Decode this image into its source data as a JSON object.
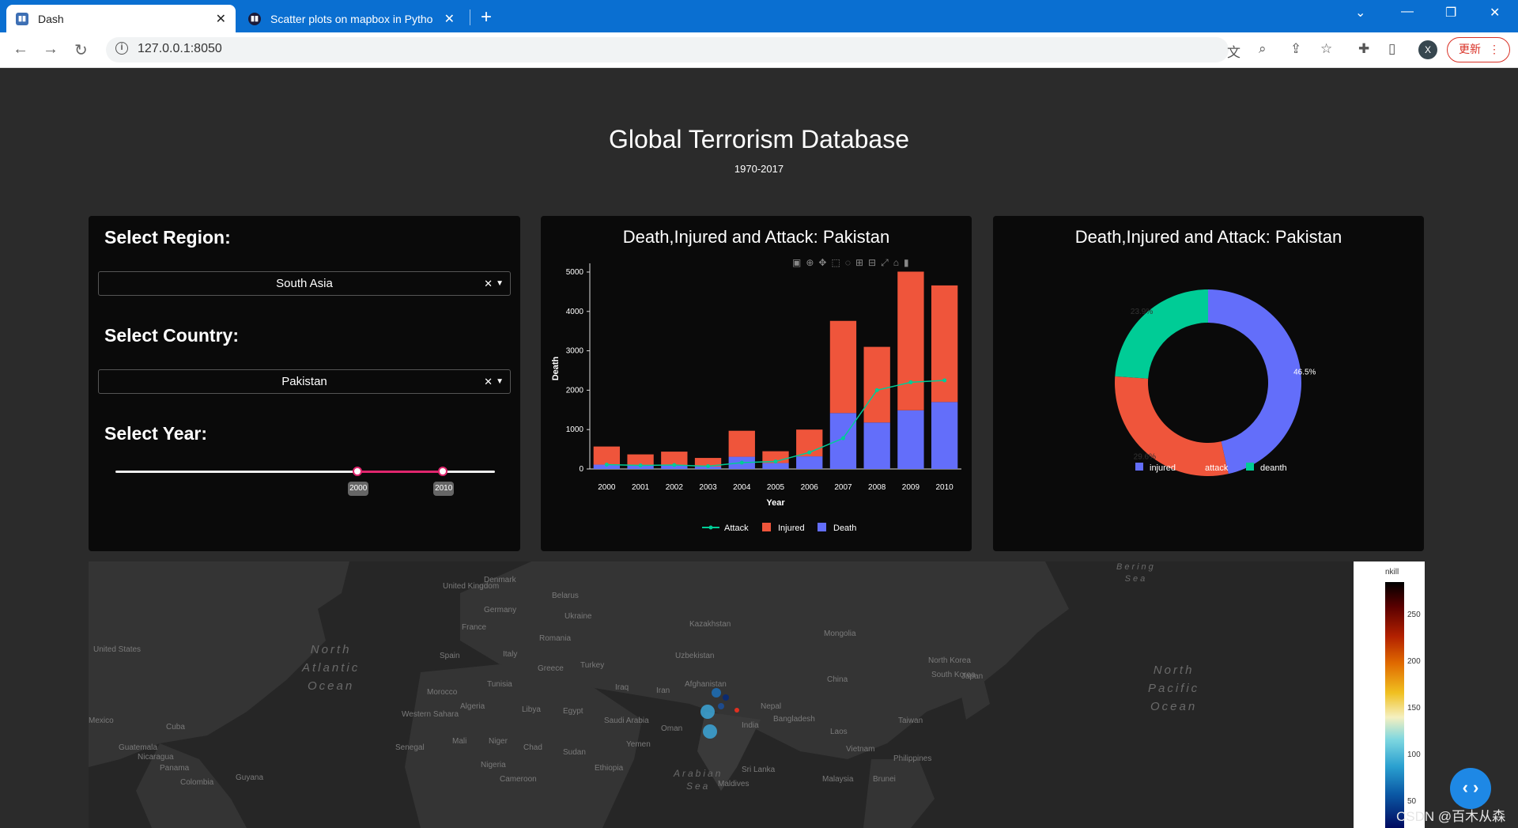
{
  "browser": {
    "tabs": [
      {
        "title": "Dash",
        "icon": "dash-icon"
      },
      {
        "title": "Scatter plots on mapbox in Pytho",
        "icon": "plotly-icon"
      }
    ],
    "url": "127.0.0.1:8050",
    "update_label": "更新",
    "profile_initial": "X"
  },
  "header": {
    "title": "Global Terrorism Database",
    "subtitle": "1970-2017"
  },
  "filters": {
    "region_label": "Select Region:",
    "region_value": "South Asia",
    "country_label": "Select Country:",
    "country_value": "Pakistan",
    "year_label": "Select Year:",
    "year_range": [
      "2000",
      "2010"
    ],
    "year_range_fraction": [
      0.64,
      0.865
    ]
  },
  "bar_chart": {
    "title": "Death,Injured and Attack: Pakistan",
    "chart_data": {
      "type": "bar",
      "stacked": true,
      "categories": [
        "2000",
        "2001",
        "2002",
        "2003",
        "2004",
        "2005",
        "2006",
        "2007",
        "2008",
        "2009",
        "2010"
      ],
      "series": [
        {
          "name": "Death",
          "type": "bar",
          "color": "#636efa",
          "values": [
            110,
            90,
            100,
            60,
            310,
            150,
            320,
            1420,
            1180,
            1490,
            1700
          ]
        },
        {
          "name": "Injured",
          "type": "bar",
          "color": "#ef553b",
          "values": [
            460,
            280,
            340,
            220,
            660,
            300,
            680,
            2340,
            1920,
            3520,
            2960
          ]
        },
        {
          "name": "Attack",
          "type": "line",
          "color": "#00cc96",
          "values": [
            110,
            90,
            100,
            70,
            160,
            190,
            420,
            780,
            2000,
            2200,
            2250
          ]
        }
      ],
      "xlabel": "Year",
      "ylabel": "Death",
      "yticks": [
        "0",
        "1000",
        "2000",
        "3000",
        "4000",
        "5000"
      ],
      "ylim": [
        0,
        5100
      ],
      "legend": "bottom-center",
      "legend_order": [
        "Attack",
        "Injured",
        "Death"
      ]
    }
  },
  "pie_chart": {
    "title": "Death,Injured and Attack: Pakistan",
    "chart_data": {
      "type": "pie",
      "hole": true,
      "labels": [
        "injured",
        "attack",
        "deanth"
      ],
      "values": [
        46.5,
        29.6,
        23.9
      ],
      "value_labels": [
        "46.5%",
        "29.6%",
        "23.9%"
      ],
      "colors": [
        "#636efa",
        "#ef553b",
        "#00cc96"
      ],
      "legend": "bottom-center"
    }
  },
  "map": {
    "ocean_labels": [
      "North\nAtlantic\nOcean",
      "North\nPacific\nOcean",
      "Arabian\nSea",
      "Bering\nSea"
    ],
    "country_labels": [
      "United Kingdom",
      "Denmark",
      "Belarus",
      "Germany",
      "Ukraine",
      "France",
      "Romania",
      "Kazakhstan",
      "Mongolia",
      "Spain",
      "Italy",
      "Uzbekistan",
      "Turkey",
      "Greece",
      "North Korea",
      "South Korea",
      "Japan",
      "Tunisia",
      "Iraq",
      "Iran",
      "Afghanistan",
      "China",
      "Morocco",
      "Algeria",
      "Libya",
      "Egypt",
      "Nepal",
      "Saudi Arabia",
      "Oman",
      "India",
      "Bangladesh",
      "Taiwan",
      "Western Sahara",
      "Mali",
      "Niger",
      "Chad",
      "Sudan",
      "Yemen",
      "Laos",
      "Senegal",
      "Vietnam",
      "Philippines",
      "Nigeria",
      "Ethiopia",
      "Sri Lanka",
      "Cameroon",
      "Malaysia",
      "Maldives",
      "Cuba",
      "Mexico",
      "Guatemala",
      "Nicaragua",
      "Panama",
      "Colombia",
      "Guyana",
      "Brunei",
      "United States"
    ],
    "colorbar": {
      "title": "nkill",
      "ticks": [
        "250",
        "200",
        "150",
        "100",
        "50"
      ]
    }
  },
  "watermark": "CSDN @百木从森"
}
